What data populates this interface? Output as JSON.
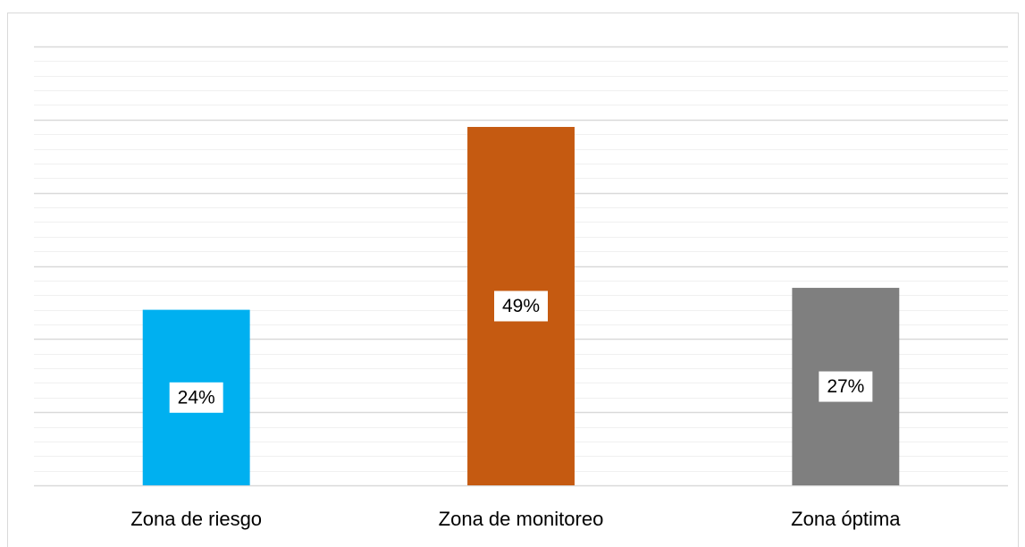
{
  "chart_data": {
    "type": "bar",
    "categories": [
      "Zona de riesgo",
      "Zona de monitoreo",
      "Zona óptima"
    ],
    "values": [
      24,
      49,
      27
    ],
    "value_labels": [
      "24%",
      "49%",
      "27%"
    ],
    "colors": [
      "#00b0f0",
      "#c55a11",
      "#7f7f7f"
    ],
    "ylim": [
      0,
      60
    ],
    "yticks": [
      0,
      10,
      20,
      30,
      40,
      50,
      60
    ],
    "minor_yticks": [
      2,
      4,
      6,
      8,
      12,
      14,
      16,
      18,
      22,
      24,
      26,
      28,
      32,
      34,
      36,
      38,
      42,
      44,
      46,
      48,
      52,
      54,
      56,
      58
    ],
    "grid": true
  }
}
